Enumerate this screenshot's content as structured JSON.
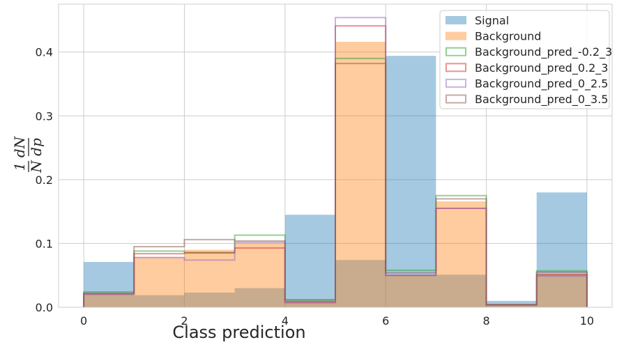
{
  "chart_data": {
    "type": "histogram",
    "xlabel": "Class prediction",
    "ylabel_parts": {
      "num_left": "1",
      "den_left": "N",
      "num_right": "dN",
      "den_right": "dp"
    },
    "xlim": [
      -0.5,
      10.5
    ],
    "ylim": [
      0,
      0.475
    ],
    "xticks": [
      0,
      2,
      4,
      6,
      8,
      10
    ],
    "yticks": [
      0.0,
      0.1,
      0.2,
      0.3,
      0.4
    ],
    "ytick_labels": [
      "0.0",
      "0.1",
      "0.2",
      "0.3",
      "0.4"
    ],
    "bin_edges": [
      0,
      1,
      2,
      3,
      4,
      5,
      6,
      7,
      8,
      9,
      10
    ],
    "grid": true,
    "legend_position": "upper-right",
    "series": [
      {
        "name": "Signal",
        "kind": "filled",
        "color": "#1f77b4",
        "alpha": 0.4,
        "values": [
          0.071,
          0.019,
          0.023,
          0.03,
          0.145,
          0.074,
          0.394,
          0.051,
          0.01,
          0.18
        ]
      },
      {
        "name": "Background",
        "kind": "filled",
        "color": "#ff7f0e",
        "alpha": 0.4,
        "values": [
          0.021,
          0.079,
          0.09,
          0.101,
          0.01,
          0.416,
          0.05,
          0.166,
          0.004,
          0.052
        ]
      },
      {
        "name": "Background_pred_-0.2_3",
        "kind": "step",
        "color": "#2ca02c",
        "alpha": 0.5,
        "values": [
          0.024,
          0.088,
          0.086,
          0.113,
          0.01,
          0.39,
          0.058,
          0.175,
          0.004,
          0.057
        ]
      },
      {
        "name": "Background_pred_0.2_3",
        "kind": "step",
        "color": "#d62728",
        "alpha": 0.5,
        "values": [
          0.021,
          0.084,
          0.085,
          0.093,
          0.008,
          0.441,
          0.05,
          0.155,
          0.004,
          0.051
        ]
      },
      {
        "name": "Background_pred_0_2.5",
        "kind": "step",
        "color": "#9467bd",
        "alpha": 0.5,
        "values": [
          0.02,
          0.078,
          0.074,
          0.102,
          0.007,
          0.454,
          0.05,
          0.155,
          0.003,
          0.049
        ]
      },
      {
        "name": "Background_pred_0_3.5",
        "kind": "step",
        "color": "#8c564b",
        "alpha": 0.5,
        "values": [
          0.022,
          0.095,
          0.106,
          0.104,
          0.012,
          0.382,
          0.054,
          0.17,
          0.004,
          0.055
        ]
      }
    ]
  }
}
